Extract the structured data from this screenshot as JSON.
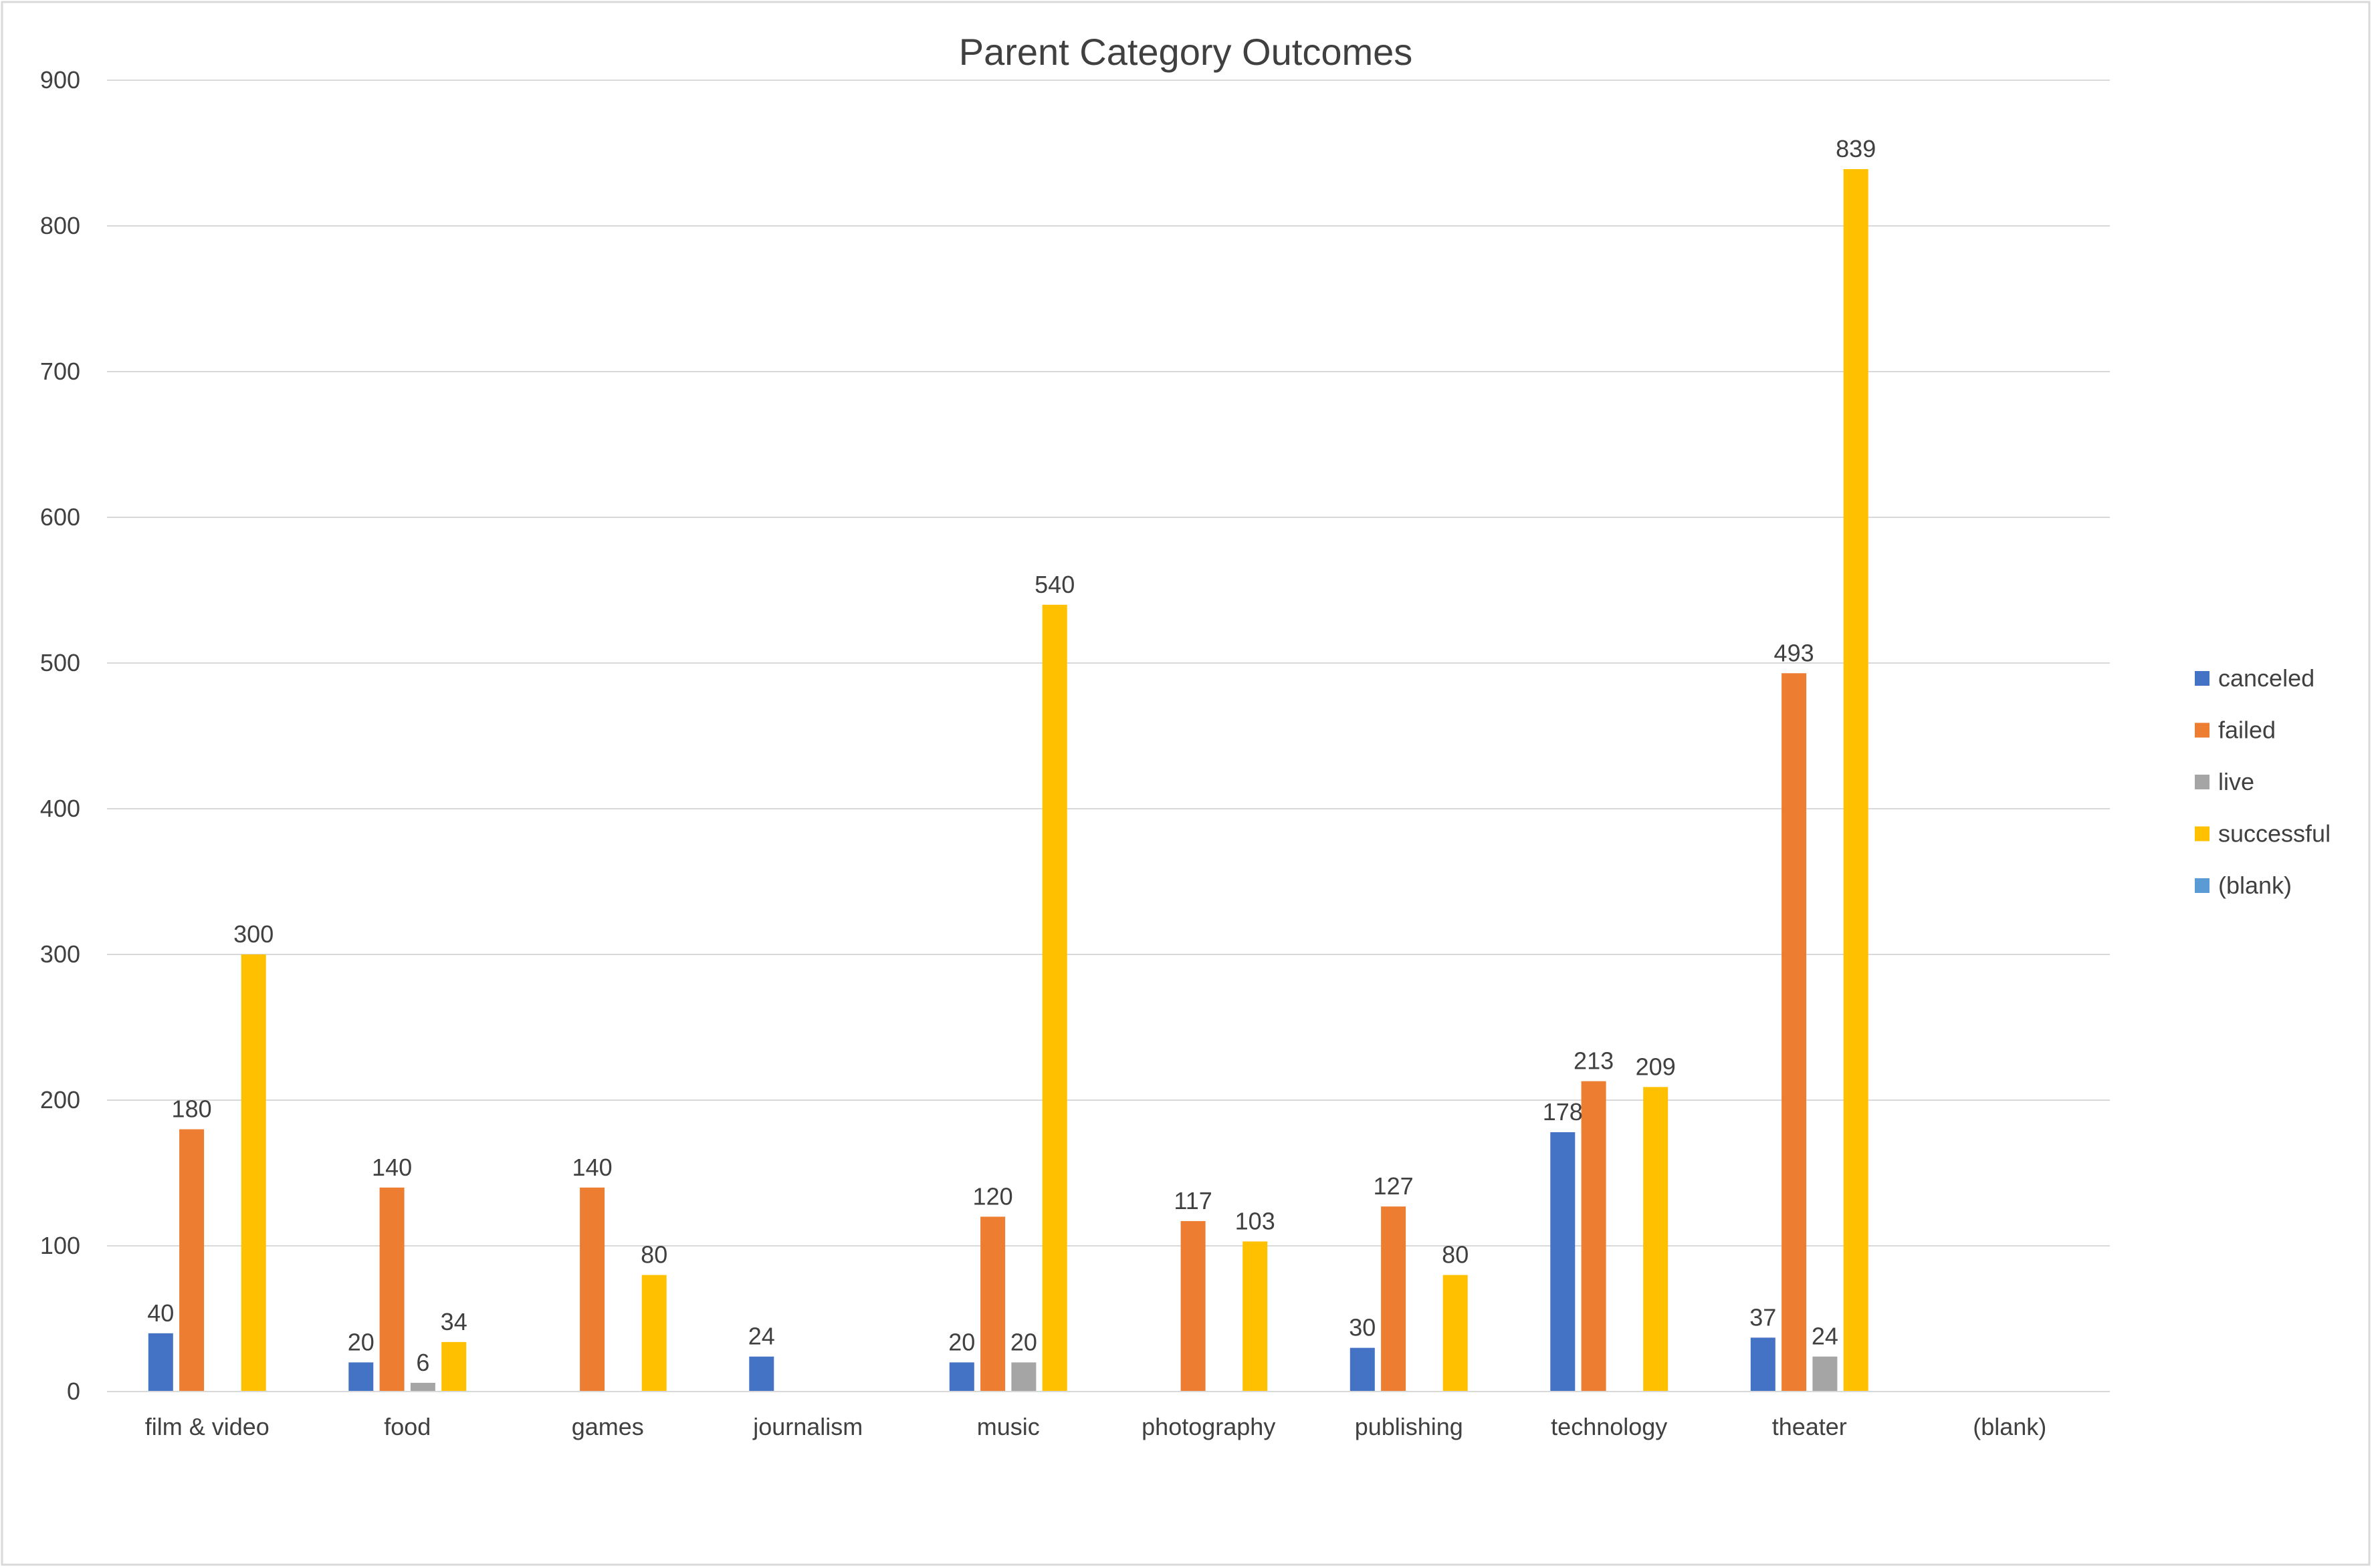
{
  "chart_data": {
    "type": "bar",
    "title": "Parent Category Outcomes",
    "xlabel": "",
    "ylabel": "",
    "ylim": [
      0,
      900
    ],
    "yticks": [
      0,
      100,
      200,
      300,
      400,
      500,
      600,
      700,
      800,
      900
    ],
    "grid": true,
    "legend_position": "right",
    "categories": [
      "film & video",
      "food",
      "games",
      "journalism",
      "music",
      "photography",
      "publishing",
      "technology",
      "theater",
      "(blank)"
    ],
    "series": [
      {
        "name": "canceled",
        "color": "#4472C4",
        "values": [
          40,
          20,
          null,
          24,
          20,
          null,
          30,
          178,
          37,
          null
        ]
      },
      {
        "name": "failed",
        "color": "#ED7D31",
        "values": [
          180,
          140,
          140,
          null,
          120,
          117,
          127,
          213,
          493,
          null
        ]
      },
      {
        "name": "live",
        "color": "#A5A5A5",
        "values": [
          null,
          6,
          null,
          null,
          20,
          null,
          null,
          null,
          24,
          null
        ]
      },
      {
        "name": "successful",
        "color": "#FFC000",
        "values": [
          300,
          34,
          80,
          null,
          540,
          103,
          80,
          209,
          839,
          null
        ]
      },
      {
        "name": "(blank)",
        "color": "#5B9BD5",
        "values": [
          null,
          null,
          null,
          null,
          null,
          null,
          null,
          null,
          null,
          null
        ]
      }
    ]
  }
}
